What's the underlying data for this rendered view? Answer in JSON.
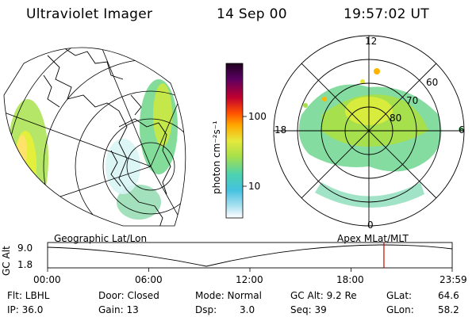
{
  "header": {
    "instrument": "Ultraviolet Imager",
    "date": "14 Sep 00",
    "time": "19:57:02 UT"
  },
  "colorbar": {
    "unit_label": "photon cm⁻²s⁻¹",
    "ticks": [
      "100",
      "10"
    ]
  },
  "polar_plot": {
    "mlt_labels": [
      "12",
      "18",
      "6",
      "0"
    ],
    "lat_labels": [
      "60",
      "70",
      "80"
    ]
  },
  "timeline": {
    "left_label": "Geographic Lat/Lon",
    "right_label": "Apex  MLat/MLT",
    "y_axis_title": "GC Alt",
    "y_ticks": [
      "9.0",
      "1.8"
    ],
    "x_ticks": [
      "00:00",
      "06:00",
      "12:00",
      "18:00",
      "23:59"
    ],
    "current_time_hours": 19.95,
    "marker_color": "#cc0000"
  },
  "status": {
    "flt": "Flt: LBHL",
    "ip": "IP: 36.0",
    "door": "Door: Closed",
    "gain": "Gain: 13",
    "mode": "Mode: Normal",
    "dsp_label": "Dsp:",
    "dsp_value": "3.0",
    "gc_alt": "GC Alt: 9.2 Re",
    "seq": "Seq: 39",
    "glat_label": "GLat:",
    "glat_value": "64.6",
    "glon_label": "GLon:",
    "glon_value": "58.2"
  }
}
